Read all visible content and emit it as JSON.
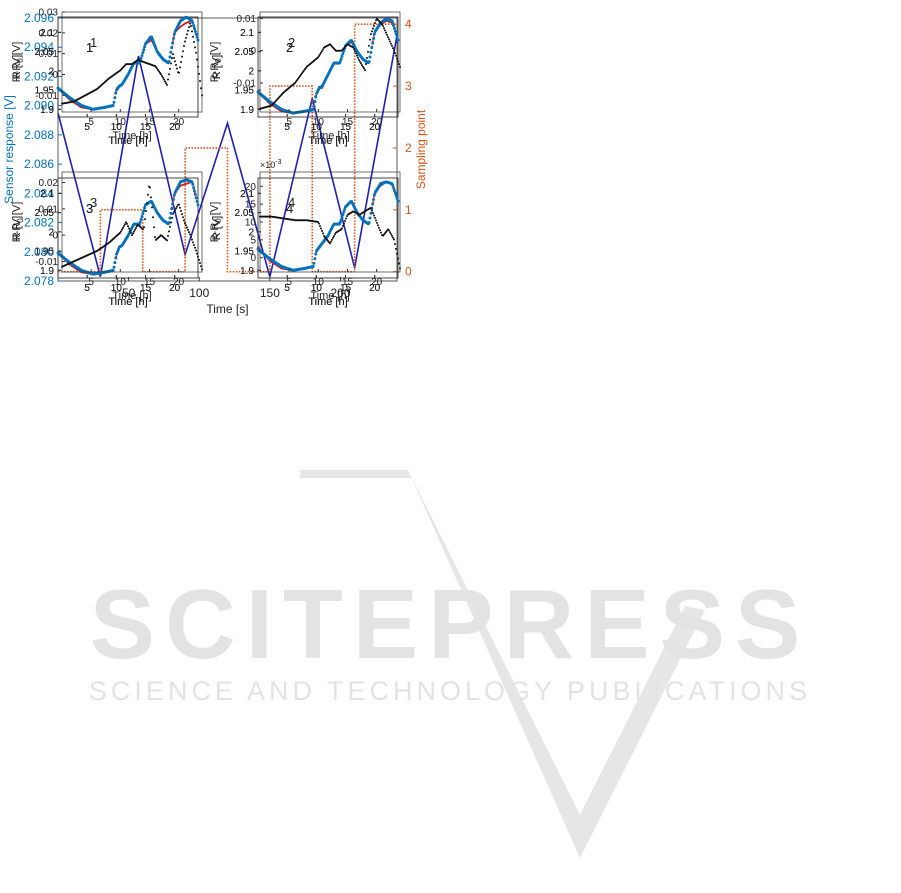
{
  "watermark": {
    "brand": "SCITEPRESS",
    "tagline": "SCIENCE AND TECHNOLOGY PUBLICATIONS",
    "color": "#d9d9d9"
  },
  "colors": {
    "blue_axis": "#0072BD",
    "orange_axis": "#D95319",
    "sensor_line": "#1f1fb4",
    "red_marker": "#e01b1b",
    "blue_marker": "#0072BD",
    "black_marker": "#111111"
  },
  "chart_data": [
    {
      "id": "sensor-sampling",
      "type": "line",
      "title": "",
      "xlabel": "Time [s]",
      "ylabel": "Sensor response [V]",
      "ylabel_right": "Sampling point",
      "xlim": [
        0,
        240
      ],
      "ylim": [
        2.078,
        2.096
      ],
      "ylim_right": [
        -0.15,
        4.1
      ],
      "xticks": [
        50,
        100,
        150,
        200
      ],
      "yticks": [
        2.078,
        2.08,
        2.082,
        2.084,
        2.086,
        2.088,
        2.09,
        2.092,
        2.094,
        2.096
      ],
      "yticks_right": [
        0,
        1,
        2,
        3,
        4
      ],
      "series": [
        {
          "axis": "left",
          "style": "solid",
          "color": "#1f1fb4",
          "x": [
            0,
            30,
            57,
            90,
            120,
            150,
            180,
            210,
            240
          ],
          "y": [
            2.0895,
            2.0783,
            2.0934,
            2.0798,
            2.0888,
            2.0783,
            2.0905,
            2.0789,
            2.0948
          ]
        },
        {
          "axis": "right",
          "style": "dotted",
          "color": "#D95319",
          "x": [
            0,
            30,
            30,
            60,
            60,
            90,
            90,
            120,
            120,
            150,
            150,
            180,
            180,
            210,
            210,
            240
          ],
          "y": [
            0,
            0,
            1,
            1,
            0,
            0,
            2,
            2,
            0,
            0,
            3,
            3,
            0,
            0,
            4,
            4
          ]
        }
      ]
    },
    {
      "id": "red-grid",
      "type": "scatter",
      "xlabel": "Time [h]",
      "ylabel": "R [V]",
      "xlim": [
        0,
        24
      ],
      "xticks": [
        5,
        10,
        15,
        20
      ],
      "ylim": [
        1.88,
        2.14
      ],
      "yticks": [
        1.9,
        1.95,
        2,
        2.05,
        2.1
      ],
      "ytick_labels": [
        "1.9",
        "1.95",
        "2",
        "2.05",
        "2.1"
      ],
      "panels": [
        {
          "label": "1",
          "x": [
            0,
            2,
            4,
            6,
            8,
            9.5,
            10,
            10.5,
            11,
            12,
            13,
            14,
            15,
            16,
            17,
            18,
            19,
            20,
            21,
            22,
            23,
            24
          ],
          "y": [
            1.955,
            1.925,
            1.905,
            1.9,
            1.905,
            1.91,
            1.95,
            1.96,
            1.965,
            1.99,
            2.02,
            2.02,
            2.07,
            2.08,
            2.05,
            2.03,
            2.02,
            2.1,
            2.115,
            2.125,
            2.13,
            2.08
          ]
        },
        {
          "label": "2",
          "x": [
            0,
            2,
            4,
            6,
            8,
            9.5,
            10,
            10.5,
            11,
            12,
            13,
            14,
            15,
            16,
            17,
            18,
            19,
            20,
            21,
            22,
            23,
            24
          ],
          "y": [
            1.945,
            1.915,
            1.895,
            1.89,
            1.895,
            1.9,
            1.94,
            1.96,
            1.955,
            1.99,
            2.02,
            2.02,
            2.065,
            2.075,
            2.05,
            2.03,
            2.02,
            2.1,
            2.12,
            2.13,
            2.125,
            2.08
          ]
        },
        {
          "label": "3",
          "x": [
            0,
            2,
            4,
            6,
            8,
            9.5,
            10,
            10.5,
            11,
            12,
            13,
            14,
            15,
            16,
            17,
            18,
            19,
            20,
            21,
            22,
            23,
            24
          ],
          "y": [
            1.945,
            1.915,
            1.895,
            1.89,
            1.895,
            1.9,
            1.94,
            1.96,
            1.965,
            1.99,
            2.02,
            2.02,
            2.07,
            2.08,
            2.05,
            2.03,
            2.02,
            2.1,
            2.12,
            2.125,
            2.13,
            2.07
          ]
        },
        {
          "label": "4",
          "x": [
            0,
            2,
            4,
            6,
            8,
            9.5,
            10,
            10.5,
            11,
            12,
            13,
            14,
            15,
            16,
            17,
            18,
            19,
            20,
            21,
            22,
            23,
            24
          ],
          "y": [
            1.96,
            1.925,
            1.905,
            1.9,
            1.905,
            1.91,
            1.95,
            1.96,
            1.97,
            1.99,
            2.02,
            2.02,
            2.065,
            2.08,
            2.05,
            2.03,
            2.02,
            2.1,
            2.12,
            2.13,
            2.125,
            2.08
          ]
        }
      ]
    },
    {
      "id": "blue-grid",
      "type": "scatter",
      "xlabel": "Time [h]",
      "ylabel": "R [V]",
      "xlim": [
        0,
        24
      ],
      "xticks": [
        5,
        10,
        15,
        20
      ],
      "ylim": [
        1.88,
        2.14
      ],
      "yticks": [
        1.9,
        1.95,
        2,
        2.05,
        2.1
      ],
      "ytick_labels": [
        "1.9",
        "1.95",
        "2",
        "2.05",
        "2.1"
      ],
      "panels": [
        {
          "label": "1",
          "x": [
            0,
            2,
            4,
            6,
            8,
            9.5,
            10,
            10.5,
            11,
            12,
            13,
            14,
            15,
            16,
            17,
            18,
            19,
            20,
            21,
            22,
            23,
            24
          ],
          "y": [
            1.955,
            1.93,
            1.91,
            1.9,
            1.905,
            1.91,
            1.95,
            1.96,
            1.965,
            1.99,
            2.02,
            2.02,
            2.07,
            2.09,
            2.05,
            2.03,
            2.02,
            2.1,
            2.13,
            2.14,
            2.13,
            2.08
          ]
        },
        {
          "label": "2",
          "x": [
            0,
            2,
            4,
            6,
            8,
            9.5,
            10,
            10.5,
            11,
            12,
            13,
            14,
            15,
            16,
            17,
            18,
            19,
            20,
            21,
            22,
            23,
            24
          ],
          "y": [
            1.945,
            1.92,
            1.9,
            1.89,
            1.895,
            1.9,
            1.94,
            1.955,
            1.96,
            1.99,
            2.02,
            2.02,
            2.065,
            2.08,
            2.05,
            2.03,
            2.02,
            2.1,
            2.125,
            2.135,
            2.13,
            2.08
          ]
        },
        {
          "label": "3",
          "x": [
            0,
            2,
            4,
            6,
            8,
            9.5,
            10,
            10.5,
            11,
            12,
            13,
            14,
            15,
            16,
            17,
            18,
            19,
            20,
            21,
            22,
            23,
            24
          ],
          "y": [
            1.945,
            1.92,
            1.9,
            1.89,
            1.895,
            1.9,
            1.94,
            1.96,
            1.965,
            1.99,
            2.02,
            2.02,
            2.07,
            2.08,
            2.05,
            2.03,
            2.02,
            2.1,
            2.13,
            2.135,
            2.13,
            2.07
          ]
        },
        {
          "label": "4",
          "x": [
            0,
            2,
            4,
            6,
            8,
            9.5,
            10,
            10.5,
            11,
            12,
            13,
            14,
            15,
            16,
            17,
            18,
            19,
            20,
            21,
            22,
            23,
            24
          ],
          "y": [
            1.955,
            1.93,
            1.91,
            1.9,
            1.905,
            1.91,
            1.95,
            1.96,
            1.97,
            1.99,
            2.02,
            2.02,
            2.065,
            2.08,
            2.05,
            2.03,
            2.02,
            2.1,
            2.125,
            2.13,
            2.125,
            2.08
          ]
        }
      ]
    },
    {
      "id": "diff-grid",
      "type": "scatter",
      "xlabel": "Time [h]",
      "ylabel": "R-R",
      "ylabel_subscript": "0",
      "ylabel_unit": " [V]",
      "xlim": [
        0,
        24
      ],
      "xticks": [
        5,
        10,
        15,
        20
      ],
      "panels": [
        {
          "label": "1",
          "ylim": [
            -0.018,
            0.03
          ],
          "yticks": [
            -0.01,
            0,
            0.01,
            0.02,
            0.03
          ],
          "ytick_labels": [
            "-0.01",
            "0",
            "0.01",
            "0.02",
            "0.03"
          ],
          "x": [
            0,
            2,
            4,
            6,
            8,
            10,
            11,
            12,
            13,
            14,
            15,
            16,
            17,
            18,
            19,
            20,
            21,
            22,
            23,
            24
          ],
          "y": [
            -0.014,
            -0.013,
            -0.01,
            -0.007,
            -0.002,
            0.002,
            0.005,
            0.005,
            0.007,
            0.006,
            0.005,
            0.004,
            0.0,
            -0.005,
            0.01,
            0.0,
            0.015,
            0.025,
            0.01,
            -0.01
          ]
        },
        {
          "label": "2",
          "ylim": [
            -0.019,
            0.012
          ],
          "yticks": [
            -0.01,
            0,
            0.01
          ],
          "ytick_labels": [
            "-0.01",
            "0",
            "0.01"
          ],
          "x": [
            0,
            2,
            4,
            6,
            8,
            10,
            11,
            12,
            13,
            14,
            15,
            16,
            17,
            18,
            19,
            20,
            21,
            22,
            23,
            24
          ],
          "y": [
            -0.018,
            -0.017,
            -0.013,
            -0.01,
            -0.005,
            -0.002,
            0.001,
            0.002,
            0.0,
            0.0,
            0.002,
            0.001,
            -0.003,
            -0.006,
            0.005,
            0.01,
            0.008,
            0.004,
            0.0,
            -0.005
          ]
        },
        {
          "label": "3",
          "ylim": [
            -0.014,
            0.024
          ],
          "yticks": [
            -0.01,
            0,
            0.01,
            0.02
          ],
          "ytick_labels": [
            "-0.01",
            "0",
            "0.01",
            "0.02"
          ],
          "x": [
            0,
            2,
            4,
            6,
            8,
            10,
            11,
            12,
            13,
            14,
            15,
            16,
            17,
            18,
            19,
            20,
            21,
            22,
            23,
            24
          ],
          "y": [
            -0.012,
            -0.01,
            -0.008,
            -0.006,
            -0.003,
            0.001,
            0.005,
            0.0,
            0.004,
            0.002,
            0.02,
            -0.002,
            0.0,
            -0.002,
            0.008,
            0.012,
            0.005,
            0.0,
            -0.006,
            -0.013
          ]
        },
        {
          "label": "4",
          "ylim": [
            -0.004,
            0.024
          ],
          "yticks": [
            0,
            0.005,
            0.01,
            0.015,
            0.02
          ],
          "ytick_labels": [
            "0",
            "5",
            "10",
            "15",
            "20"
          ],
          "multiplier": "×10",
          "multiplier_exp": "-3",
          "x": [
            0,
            2,
            4,
            6,
            8,
            10,
            11,
            12,
            13,
            14,
            15,
            16,
            17,
            18,
            19,
            20,
            21,
            22,
            23,
            24
          ],
          "y": [
            0.0115,
            0.0115,
            0.011,
            0.0105,
            0.0105,
            0.01,
            0.006,
            0.004,
            0.007,
            0.008,
            0.012,
            0.013,
            0.012,
            0.013,
            0.014,
            0.01,
            0.006,
            0.008,
            0.005,
            -0.003
          ]
        }
      ]
    }
  ]
}
